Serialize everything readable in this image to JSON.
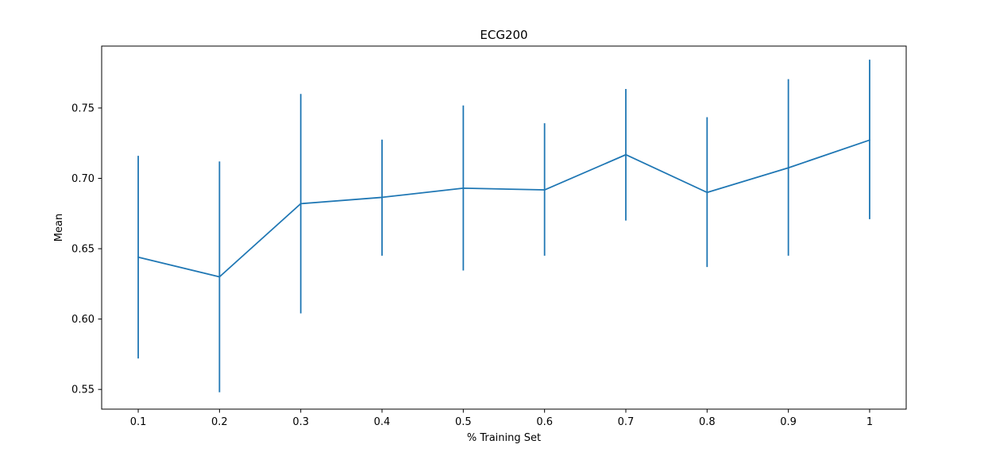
{
  "chart_data": {
    "type": "line",
    "title": "ECG200",
    "xlabel": "% Training Set",
    "ylabel": "Mean",
    "x": [
      0.1,
      0.2,
      0.3,
      0.4,
      0.5,
      0.6,
      0.7,
      0.8,
      0.9,
      1.0
    ],
    "x_tick_labels": [
      "0.1",
      "0.2",
      "0.3",
      "0.4",
      "0.5",
      "0.6",
      "0.7",
      "0.8",
      "0.9",
      "1"
    ],
    "y_ticks": [
      0.55,
      0.6,
      0.65,
      0.7,
      0.75
    ],
    "y_tick_labels": [
      "0.55",
      "0.60",
      "0.65",
      "0.70",
      "0.75"
    ],
    "xlim": [
      0.055,
      1.045
    ],
    "ylim": [
      0.536,
      0.794
    ],
    "grid": false,
    "series": [
      {
        "values": [
          0.644,
          0.63,
          0.682,
          0.6865,
          0.693,
          0.6918,
          0.7168,
          0.69,
          0.7075,
          0.7272
        ],
        "error_low": [
          0.572,
          0.548,
          0.604,
          0.645,
          0.6345,
          0.645,
          0.67,
          0.637,
          0.645,
          0.671
        ],
        "error_high": [
          0.716,
          0.712,
          0.76,
          0.7275,
          0.7518,
          0.7392,
          0.7635,
          0.7435,
          0.7705,
          0.7843
        ],
        "color": "#1f77b4"
      }
    ]
  }
}
